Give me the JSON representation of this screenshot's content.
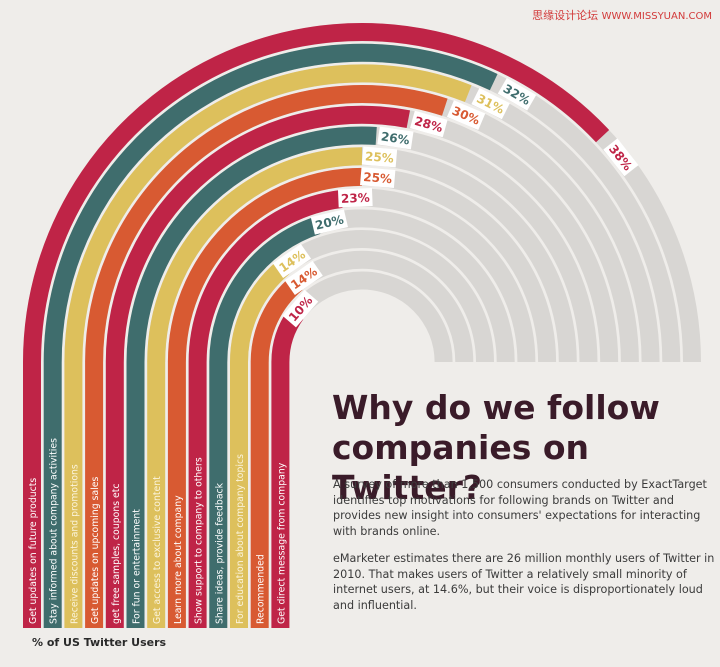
{
  "watermark": {
    "cn": "思缘设计论坛",
    "en": "WWW.MISSYUAN.COM"
  },
  "headline": "Why do we follow companies on Twitter?",
  "paragraphs": [
    "A survey of more than 1,500 consumers conducted by ExactTarget identifies top motivations for following brands on Twitter and provides new insight into consumers' expectations for interacting with brands online.",
    "eMarketer estimates there are 26 million monthly users of Twitter in 2010. That makes users of Twitter a relatively small minority of internet users, at 14.6%, but their voice is disproportionately loud and influential."
  ],
  "footnote": "% of US Twitter Users",
  "colors": {
    "red": "#bf2447",
    "teal": "#3f6d6d",
    "yellow": "#ddc05c",
    "orange": "#d85a32",
    "track": "#d8d6d3",
    "background": "#efedea"
  },
  "chart_data": {
    "type": "radial-bar",
    "title": "Why do we follow companies on Twitter?",
    "max_percent": 50,
    "value_unit": "% of US Twitter Users",
    "categories": [
      "Get updates on future products",
      "Stay informed about company activities",
      "Receive discounts and promotions",
      "Get updates on upcoming sales",
      "get free samples, coupons etc",
      "For fun or entertainment",
      "Get access to exclusive content",
      "Learn more about company",
      "Show support to company to others",
      "Share ideas, provide feedback",
      "For education about company topics",
      "Recommended",
      "Get direct message from company"
    ],
    "values": [
      38,
      32,
      31,
      30,
      28,
      26,
      25,
      25,
      23,
      20,
      14,
      14,
      10
    ],
    "value_labels": [
      "38%",
      "32%",
      "31%",
      "30%",
      "28%",
      "26%",
      "25%",
      "25%",
      "23%",
      "20%",
      "14%",
      "14%",
      "10%"
    ],
    "bar_colors": [
      "#bf2447",
      "#3f6d6d",
      "#ddc05c",
      "#d85a32",
      "#bf2447",
      "#3f6d6d",
      "#ddc05c",
      "#d85a32",
      "#bf2447",
      "#3f6d6d",
      "#ddc05c",
      "#d85a32",
      "#bf2447"
    ],
    "label_text_colors": [
      "#bf2447",
      "#3f6d6d",
      "#ddc05c",
      "#d85a32",
      "#bf2447",
      "#3f6d6d",
      "#ddc05c",
      "#d85a32",
      "#bf2447",
      "#3f6d6d",
      "#ddc05c",
      "#d85a32",
      "#bf2447"
    ]
  }
}
